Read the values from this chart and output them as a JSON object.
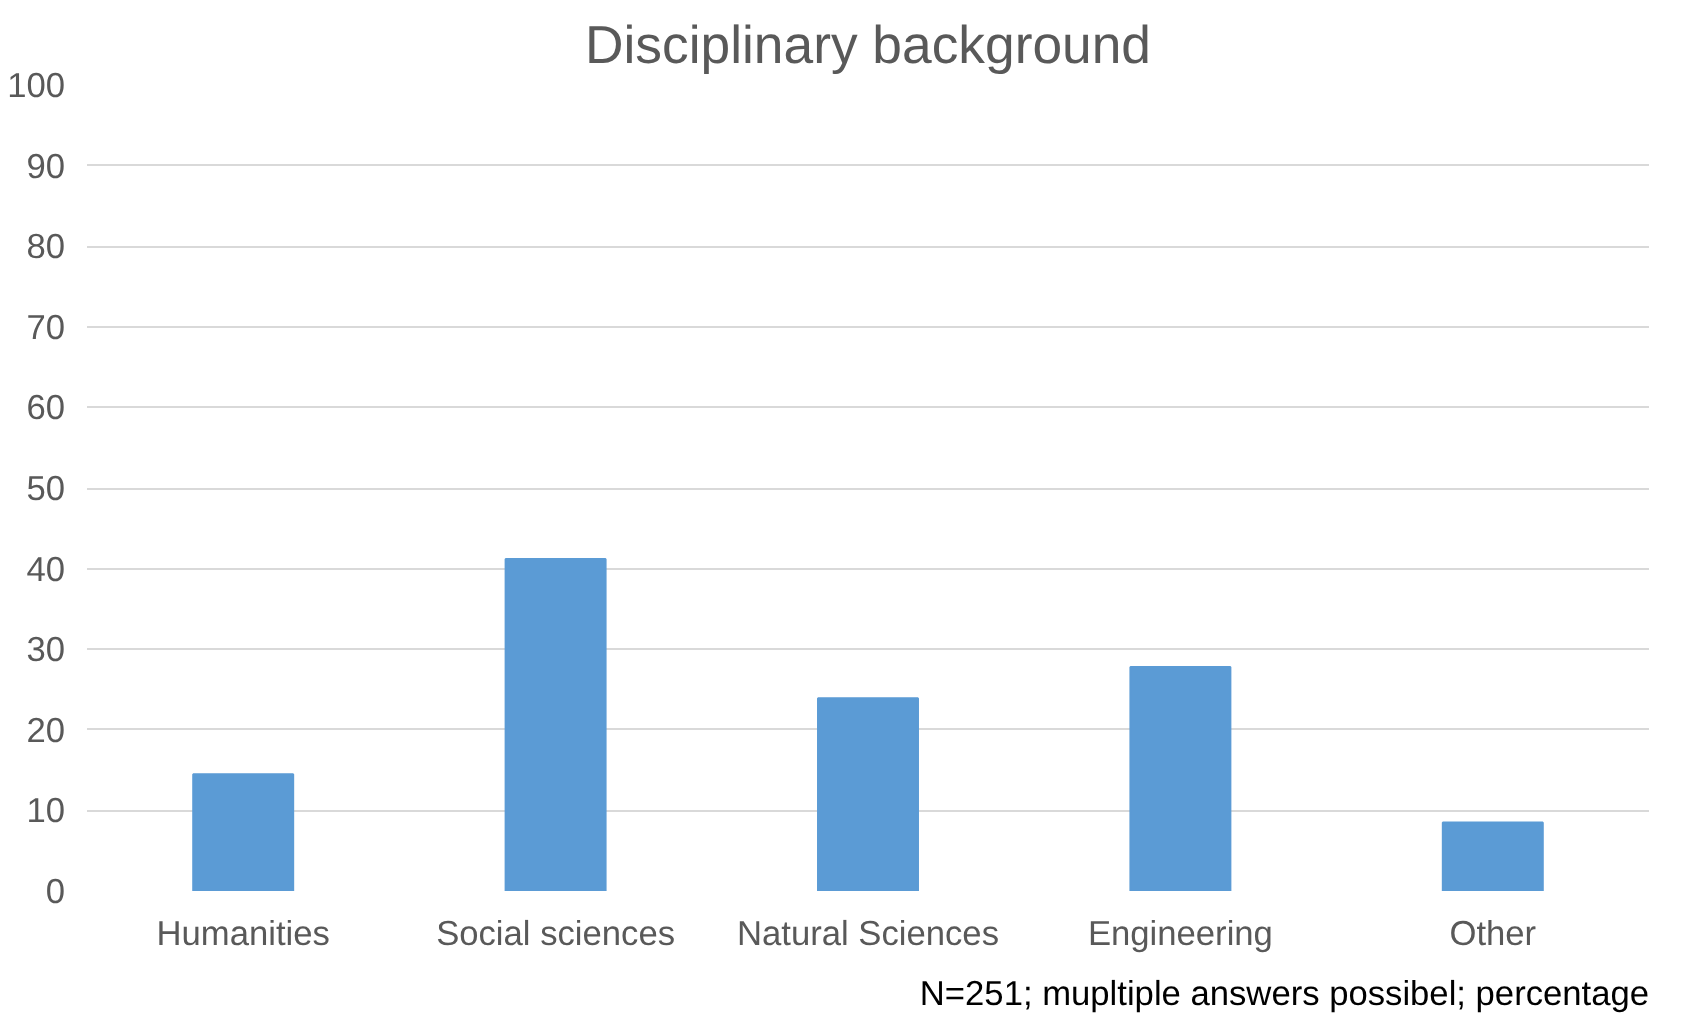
{
  "chart_data": {
    "type": "bar",
    "title": "Disciplinary background",
    "categories": [
      "Humanities",
      "Social sciences",
      "Natural Sciences",
      "Engineering",
      "Other"
    ],
    "values": [
      14.5,
      41.2,
      23.9,
      27.8,
      8.5
    ],
    "color": "#5b9bd5",
    "ylim": [
      0,
      100
    ],
    "yticks": [
      0,
      10,
      20,
      30,
      40,
      50,
      60,
      70,
      80,
      90,
      100
    ],
    "grid": "y",
    "annotations": [
      "N=251; mupltiple answers possibel; percentage"
    ]
  }
}
